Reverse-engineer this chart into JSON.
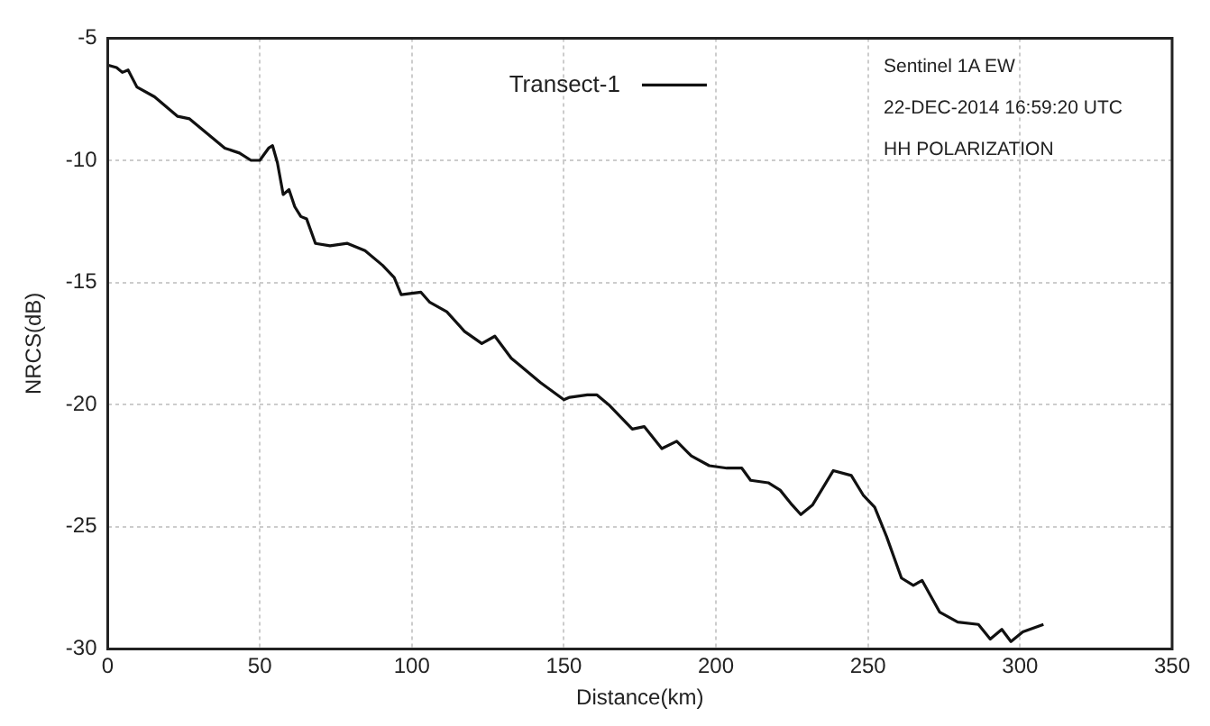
{
  "chart_data": {
    "type": "line",
    "xlabel": "Distance(km)",
    "ylabel": "NRCS(dB)",
    "annotations": [
      "Sentinel 1A EW",
      "22-DEC-2014 16:59:20 UTC",
      "HH POLARIZATION"
    ],
    "xlim": [
      0,
      350
    ],
    "xticks": [
      0,
      50,
      100,
      150,
      200,
      250,
      300,
      350
    ],
    "ylim": [
      -30,
      -5
    ],
    "yticks": [
      -30,
      -25,
      -20,
      -15,
      -10,
      -5
    ],
    "grid": true,
    "legend": "top",
    "marker": "none",
    "line_style": "solid",
    "series": [
      {
        "name": "Transect-1",
        "color": "#111111",
        "x": [
          0,
          2.9,
          4.8,
          6.7,
          9.6,
          15.4,
          23,
          26.9,
          32.7,
          38.5,
          43.3,
          47.1,
          50,
          52.9,
          54.2,
          55.8,
          57.7,
          59.6,
          61.5,
          63.5,
          65.4,
          68.3,
          73.1,
          78.8,
          84.6,
          90.4,
          94.2,
          96.5,
          103,
          105.8,
          111.5,
          117.3,
          123,
          127.3,
          132.7,
          134.6,
          142.3,
          150,
          151.9,
          157.7,
          160.8,
          164.7,
          172.5,
          176.4,
          182.2,
          187.1,
          191.9,
          197.8,
          203.6,
          208.5,
          211.4,
          217.2,
          221.1,
          225,
          227.9,
          231.8,
          238.6,
          244.5,
          248.4,
          252.2,
          256.1,
          261,
          264.9,
          267.8,
          273.6,
          279.5,
          286.3,
          290.2,
          294,
          297,
          300.9,
          307.7
        ],
        "values": [
          -6.1,
          -6.2,
          -6.4,
          -6.3,
          -7.0,
          -7.4,
          -8.2,
          -8.3,
          -8.9,
          -9.5,
          -9.7,
          -10.0,
          -10.0,
          -9.5,
          -9.4,
          -10.1,
          -11.4,
          -11.2,
          -11.9,
          -12.3,
          -12.4,
          -13.4,
          -13.5,
          -13.4,
          -13.7,
          -14.3,
          -14.8,
          -15.5,
          -15.4,
          -15.8,
          -16.2,
          -17.0,
          -17.5,
          -17.2,
          -18.1,
          -18.3,
          -19.1,
          -19.8,
          -19.7,
          -19.6,
          -19.6,
          -20.0,
          -21.0,
          -20.9,
          -21.8,
          -21.5,
          -22.1,
          -22.5,
          -22.6,
          -22.6,
          -23.1,
          -23.2,
          -23.5,
          -24.1,
          -24.5,
          -24.1,
          -22.7,
          -22.9,
          -23.7,
          -24.2,
          -25.4,
          -27.1,
          -27.4,
          -27.2,
          -28.5,
          -28.9,
          -29.0,
          -29.6,
          -29.2,
          -29.7,
          -29.3,
          -29.0
        ]
      }
    ]
  }
}
